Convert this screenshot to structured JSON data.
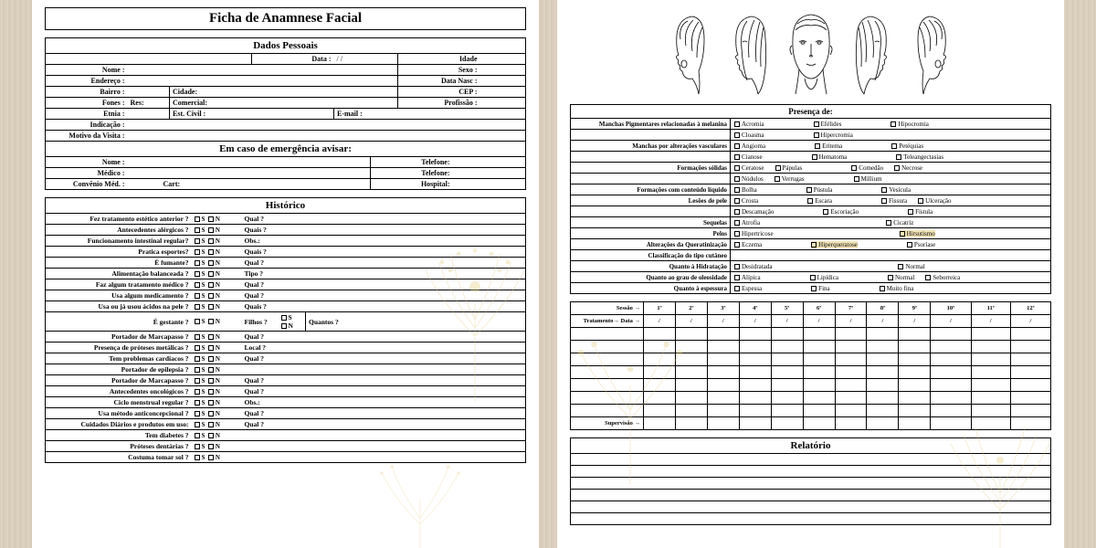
{
  "doc_title": "Ficha de Anamnese Facial",
  "colors": {
    "accent": "#e6c97a",
    "border": "#000000",
    "bg_page": "#ffffff"
  },
  "sections": {
    "dados_pessoais": {
      "title": "Dados Pessoais",
      "rows": [
        [
          "",
          "",
          "Data :",
          "/      /",
          "Idade"
        ],
        [
          "Nome :",
          "",
          "",
          "",
          "Sexo :"
        ],
        [
          "Endereço :",
          "",
          "",
          "",
          "Data Nasc :"
        ],
        [
          "Bairro :",
          "",
          "Cidade:",
          "",
          "CEP :"
        ],
        [
          "Fones :",
          "Res:",
          "Comercial:",
          "",
          "Profissão :"
        ],
        [
          "Etnia :",
          "",
          "Est. Civil :",
          "E-mail :",
          ""
        ],
        [
          "Indicação :",
          "",
          "",
          "",
          ""
        ],
        [
          "Motivo da Visita :",
          "",
          "",
          "",
          ""
        ]
      ]
    },
    "emergencia": {
      "title": "Em caso de emergência avisar:",
      "rows": [
        [
          "Nome :",
          "",
          "Telefone:"
        ],
        [
          "Médico :",
          "",
          "Telefone:"
        ],
        [
          "Convênio Méd. :",
          "Cart:",
          "Hospital:"
        ]
      ]
    },
    "historico": {
      "title": "Histórico",
      "items": [
        {
          "q": "Fez tratamento estético anterior ?",
          "f": "Qual ?"
        },
        {
          "q": "Antecedentes alérgicos ?",
          "f": "Quais ?"
        },
        {
          "q": "Funcionamento intestinal regular?",
          "f": "Obs.:"
        },
        {
          "q": "Pratica esportes?",
          "f": "Quais ?"
        },
        {
          "q": "É fumante?",
          "f": "Qual ?"
        },
        {
          "q": "Alimentação balanceada ?",
          "f": "Tipo ?"
        },
        {
          "q": "Faz algum tratamento médico ?",
          "f": "Qual ?"
        },
        {
          "q": "Usa algum medicamento ?",
          "f": "Qual ?"
        },
        {
          "q": "Usa ou já usou ácidos na pele ?",
          "f": "Quais ?"
        },
        {
          "q": "É gestante ?",
          "f": "Filhos ?",
          "extra": true,
          "e1": "Quantos ?"
        },
        {
          "q": "Portador de Marcapasso ?",
          "f": "Qual ?"
        },
        {
          "q": "Presença de próteses metálicas ?",
          "f": "Local ?"
        },
        {
          "q": "Tem problemas cardíacos ?",
          "f": "Qual ?"
        },
        {
          "q": "Portador de epilepsia ?",
          "f": ""
        },
        {
          "q": "Portador de Marcapasso ?",
          "f": "Qual ?"
        },
        {
          "q": "Antecedentes oncológicos ?",
          "f": "Qual ?"
        },
        {
          "q": "Ciclo  menstrual regular ?",
          "f": "Obs.:"
        },
        {
          "q": "Usa método anticoncepcional ?",
          "f": "Qual ?"
        },
        {
          "q": "Cuidados Diários e produtos em uso:",
          "f": "Qual ?"
        },
        {
          "q": "Tem diabetes ?",
          "f": ""
        },
        {
          "q": "Próteses dentárias ?",
          "f": ""
        },
        {
          "q": "Costuma tomar sol ?",
          "f": ""
        }
      ],
      "sn_labels": {
        "s": "S",
        "n": "N"
      }
    },
    "presenca": {
      "title": "Presença de:",
      "rows": [
        {
          "l": "Manchas Pigmentares relacionadas à melanina",
          "o": [
            "Acromia",
            "",
            "Efélides",
            "",
            "Hipocromia"
          ],
          "o2": [
            "Cloasma",
            "",
            "Hipercromia"
          ]
        },
        {
          "l": "Manchas por alterações vasculares",
          "o": [
            "Angioma",
            "",
            "Eritema",
            "",
            "Petéquias"
          ],
          "o2": [
            "Cianose",
            "",
            "Hematoma",
            "",
            "Teleangectasias"
          ]
        },
        {
          "l": "Formações sólidas",
          "o": [
            "Ceratose",
            "Pápulas",
            "",
            "Comedão",
            "Necrose"
          ],
          "o2": [
            "Nódulos",
            "Verrugas",
            "",
            "Millium"
          ]
        },
        {
          "l": "Formações com conteúdo líquido",
          "o": [
            "Bolha",
            "",
            "Pústula",
            "",
            "Vesícula"
          ]
        },
        {
          "l": "Lesões de pele",
          "o": [
            "Crosta",
            "",
            "Escara",
            "",
            "Fissura",
            "Ulceração"
          ],
          "o2": [
            "Descamação",
            "",
            "Escoriação",
            "",
            "Fístula"
          ]
        },
        {
          "l": "Sequelas",
          "o": [
            "Atrofia",
            "",
            "",
            "",
            "Cicatriz"
          ]
        },
        {
          "l": "Pelos",
          "o": [
            "Hipertricose",
            "",
            "",
            "",
            "Hirsutismo"
          ],
          "hl": 4
        },
        {
          "l": "Alterações da Queratinização",
          "o": [
            "Eczema",
            "",
            "Hiperqueratose",
            "",
            "Psoríase"
          ],
          "hl": 2
        },
        {
          "l": "Classificação do tipo cutâneo",
          "o": []
        },
        {
          "l": "Quanto à Hidratação",
          "o": [
            "Desidratada",
            "",
            "",
            "",
            "Normal"
          ]
        },
        {
          "l": "Quanto ao grau de oleosidade",
          "o": [
            "Alípica",
            "",
            "Lipídica",
            "",
            "Normal",
            "Seborreica"
          ]
        },
        {
          "l": "Quanto à espessura",
          "o": [
            "Espessa",
            "",
            "Fina",
            "",
            "Muito fina"
          ]
        }
      ]
    },
    "sessoes": {
      "header": [
        "Sessão →",
        "1ª",
        "2ª",
        "3ª",
        "4ª",
        "5ª",
        "6ª",
        "7ª",
        "8ª",
        "9ª",
        "10ª",
        "11ª",
        "12ª"
      ],
      "row_labels": [
        "Tratamento→ Data →",
        "",
        "",
        "",
        "",
        "",
        "",
        "",
        "Supervisão →"
      ],
      "slash": "/"
    },
    "relatorio": {
      "title": "Relatório",
      "rows": 6
    }
  }
}
